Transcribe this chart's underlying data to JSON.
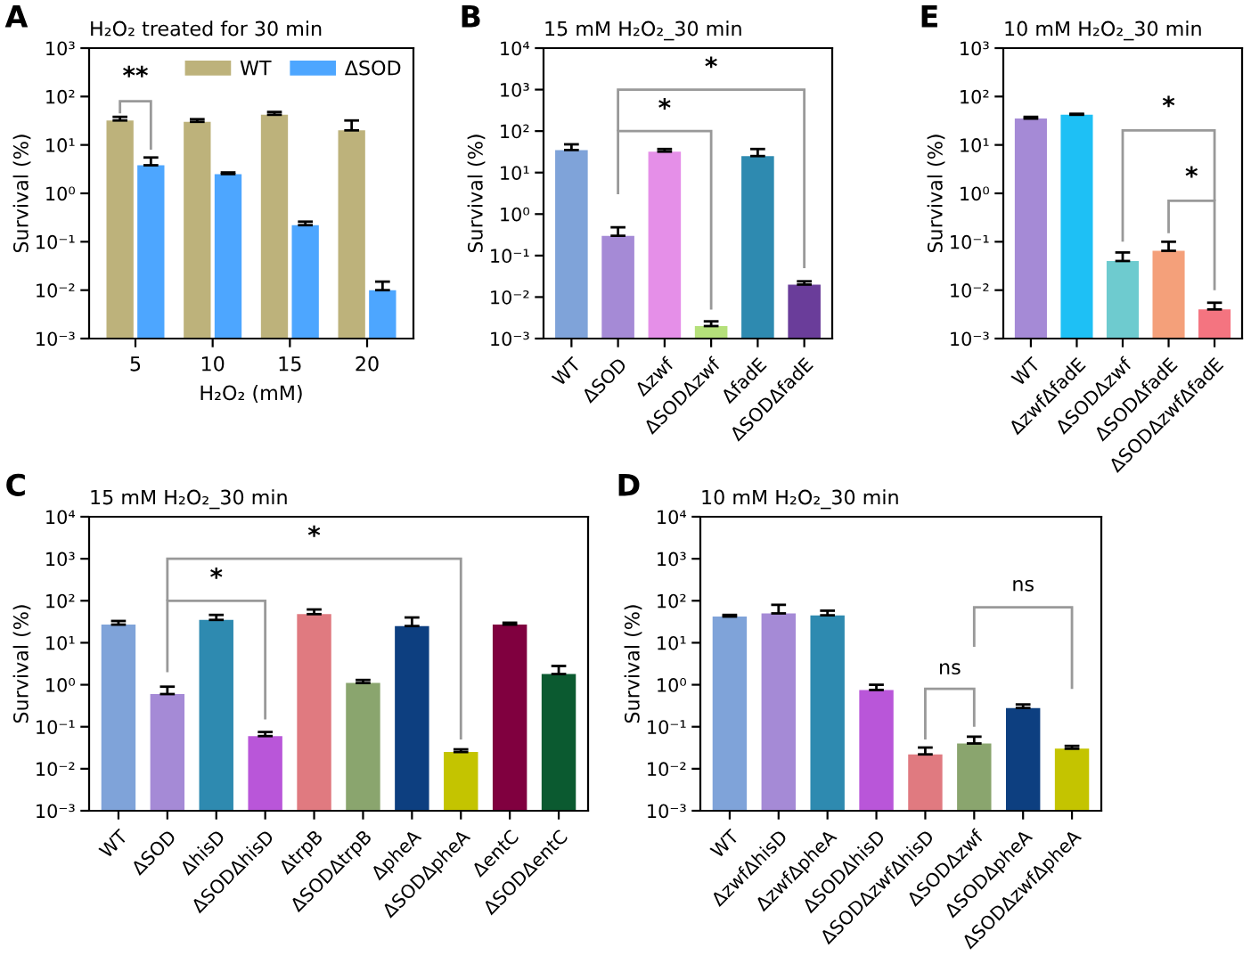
{
  "chart_data": [
    {
      "type": "bar",
      "title": "H₂O₂ treated for 30 min",
      "xlabel": "H₂O₂ (mM)",
      "ylabel": "Survival (%)",
      "annotations": [
        "A",
        "**"
      ],
      "categories": [
        "5",
        "10",
        "15",
        "20"
      ],
      "log": "y",
      "ylim": [
        0.001,
        1000
      ],
      "yticks": [
        {
          "value": 0.001,
          "label": "10⁻³"
        },
        {
          "value": 0.01,
          "label": "10⁻²"
        },
        {
          "value": 0.1,
          "label": "10⁻¹"
        },
        {
          "value": 1,
          "label": "10⁰"
        },
        {
          "value": 10,
          "label": "10¹"
        },
        {
          "value": 100,
          "label": "10²"
        },
        {
          "value": 1000,
          "label": "10³"
        }
      ],
      "legend": "top right",
      "grid": false,
      "series": [
        {
          "name": "WT",
          "color": "#bdb27b",
          "values": [
            32,
            30,
            42,
            20
          ],
          "errors": [
            [
              32,
              38
            ],
            [
              30,
              34
            ],
            [
              42,
              48
            ],
            [
              20,
              32
            ]
          ]
        },
        {
          "name": "ΔSOD",
          "color": "#4da6ff",
          "values": [
            3.8,
            2.5,
            0.22,
            0.01
          ],
          "errors": [
            [
              3.8,
              5.5
            ],
            [
              2.5,
              2.7
            ],
            [
              0.22,
              0.26
            ],
            [
              0.01,
              0.015
            ]
          ]
        }
      ]
    },
    {
      "type": "bar",
      "title": "15 mM H₂O₂_30 min",
      "ylabel": "Survival (%)",
      "annotations": [
        "B",
        "*",
        "*"
      ],
      "categories": [
        "WT",
        "ΔSOD",
        "Δzwf",
        "ΔSODΔzwf",
        "ΔfadE",
        "ΔSODΔfadE"
      ],
      "log": "y",
      "ylim": [
        0.001,
        10000
      ],
      "yticks": [
        {
          "value": 0.001,
          "label": "10⁻³"
        },
        {
          "value": 0.01,
          "label": "10⁻²"
        },
        {
          "value": 0.1,
          "label": "10⁻¹"
        },
        {
          "value": 1,
          "label": "10⁰"
        },
        {
          "value": 10,
          "label": "10¹"
        },
        {
          "value": 100,
          "label": "10²"
        },
        {
          "value": 1000,
          "label": "10³"
        },
        {
          "value": 10000,
          "label": "10⁴"
        }
      ],
      "grid": false,
      "values": [
        35,
        0.3,
        32,
        0.002,
        25,
        0.02
      ],
      "errors": [
        [
          35,
          48
        ],
        [
          0.3,
          0.48
        ],
        [
          32,
          37
        ],
        [
          0.002,
          0.0026
        ],
        [
          25,
          37
        ],
        [
          0.02,
          0.024
        ]
      ],
      "colors": [
        "#7fa3d9",
        "#a58ad6",
        "#e58fe8",
        "#b5e07a",
        "#2e8ab0",
        "#6a3d9a"
      ]
    },
    {
      "type": "bar",
      "title": "10 mM H₂O₂_30 min",
      "ylabel": "Survival (%)",
      "annotations": [
        "E",
        "*",
        "*"
      ],
      "categories": [
        "WT",
        "ΔzwfΔfadE",
        "ΔSODΔzwf",
        "ΔSODΔfadE",
        "ΔSODΔzwfΔfadE"
      ],
      "log": "y",
      "ylim": [
        0.001,
        1000
      ],
      "yticks": [
        {
          "value": 0.001,
          "label": "10⁻³"
        },
        {
          "value": 0.01,
          "label": "10⁻²"
        },
        {
          "value": 0.1,
          "label": "10⁻¹"
        },
        {
          "value": 1,
          "label": "10⁰"
        },
        {
          "value": 10,
          "label": "10¹"
        },
        {
          "value": 100,
          "label": "10²"
        },
        {
          "value": 1000,
          "label": "10³"
        }
      ],
      "grid": false,
      "values": [
        35,
        42,
        0.04,
        0.065,
        0.004
      ],
      "errors": [
        [
          35,
          38
        ],
        [
          42,
          44
        ],
        [
          0.04,
          0.06
        ],
        [
          0.065,
          0.1
        ],
        [
          0.004,
          0.0055
        ]
      ],
      "colors": [
        "#a58ad6",
        "#1ec0f5",
        "#6ecbcf",
        "#f4a07a",
        "#f47480"
      ]
    },
    {
      "type": "bar",
      "title": "15 mM H₂O₂_30 min",
      "ylabel": "Survival (%)",
      "annotations": [
        "C",
        "*",
        "*"
      ],
      "categories": [
        "WT",
        "ΔSOD",
        "ΔhisD",
        "ΔSODΔhisD",
        "ΔtrpB",
        "ΔSODΔtrpB",
        "ΔpheA",
        "ΔSODΔpheA",
        "ΔentC",
        "ΔSODΔentC"
      ],
      "log": "y",
      "ylim": [
        0.001,
        10000
      ],
      "yticks": [
        {
          "value": 0.001,
          "label": "10⁻³"
        },
        {
          "value": 0.01,
          "label": "10⁻²"
        },
        {
          "value": 0.1,
          "label": "10⁻¹"
        },
        {
          "value": 1,
          "label": "10⁰"
        },
        {
          "value": 10,
          "label": "10¹"
        },
        {
          "value": 100,
          "label": "10²"
        },
        {
          "value": 1000,
          "label": "10³"
        },
        {
          "value": 10000,
          "label": "10⁴"
        }
      ],
      "grid": false,
      "values": [
        27,
        0.6,
        35,
        0.06,
        48,
        1.1,
        25,
        0.025,
        27,
        1.8
      ],
      "errors": [
        [
          27,
          33
        ],
        [
          0.6,
          0.9
        ],
        [
          35,
          46
        ],
        [
          0.06,
          0.075
        ],
        [
          48,
          62
        ],
        [
          1.1,
          1.3
        ],
        [
          25,
          40
        ],
        [
          0.025,
          0.029
        ],
        [
          27,
          30
        ],
        [
          1.8,
          2.8
        ]
      ],
      "colors": [
        "#7fa3d9",
        "#a58ad6",
        "#2e8ab0",
        "#b956d9",
        "#e07a80",
        "#8aa56e",
        "#0d3f80",
        "#c4c400",
        "#80003f",
        "#0b5a30"
      ]
    },
    {
      "type": "bar",
      "title": "10 mM H₂O₂_30 min",
      "ylabel": "Survival (%)",
      "annotations": [
        "D",
        "ns",
        "ns"
      ],
      "categories": [
        "WT",
        "ΔzwfΔhisD",
        "ΔzwfΔpheA",
        "ΔSODΔhisD",
        "ΔSODΔzwfΔhisD",
        "ΔSODΔzwf",
        "ΔSODΔpheA",
        "ΔSODΔzwfΔpheA"
      ],
      "log": "y",
      "ylim": [
        0.001,
        10000
      ],
      "yticks": [
        {
          "value": 0.001,
          "label": "10⁻³"
        },
        {
          "value": 0.01,
          "label": "10⁻²"
        },
        {
          "value": 0.1,
          "label": "10⁻¹"
        },
        {
          "value": 1,
          "label": "10⁰"
        },
        {
          "value": 10,
          "label": "10¹"
        },
        {
          "value": 100,
          "label": "10²"
        },
        {
          "value": 1000,
          "label": "10³"
        },
        {
          "value": 10000,
          "label": "10⁴"
        }
      ],
      "grid": false,
      "values": [
        42,
        50,
        45,
        0.75,
        0.022,
        0.04,
        0.28,
        0.03
      ],
      "errors": [
        [
          42,
          46
        ],
        [
          50,
          80
        ],
        [
          45,
          58
        ],
        [
          0.75,
          1.0
        ],
        [
          0.022,
          0.032
        ],
        [
          0.04,
          0.058
        ],
        [
          0.28,
          0.34
        ],
        [
          0.03,
          0.035
        ]
      ],
      "colors": [
        "#7fa3d9",
        "#a58ad6",
        "#2e8ab0",
        "#b956d9",
        "#e07a80",
        "#8aa56e",
        "#0d3f80",
        "#c4c400"
      ]
    }
  ]
}
